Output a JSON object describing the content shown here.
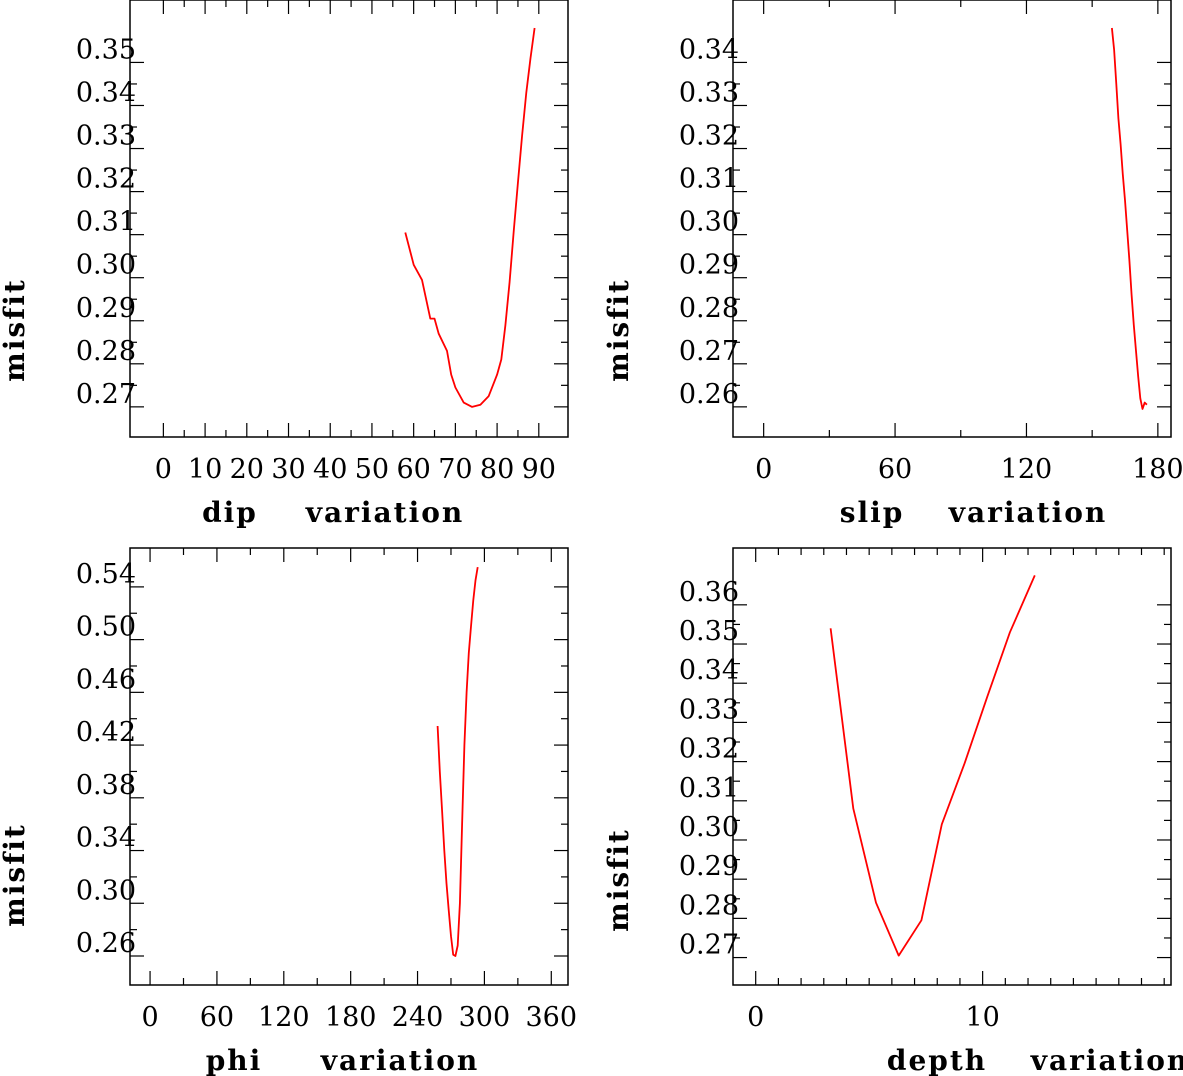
{
  "chart_data": [
    {
      "type": "line",
      "panel": "top-left",
      "title": "",
      "xlabel_parts": [
        "dip",
        "variation"
      ],
      "ylabel": "misfit",
      "xlim": [
        -8,
        97
      ],
      "ylim": [
        0.263,
        0.3645
      ],
      "xticks": [
        0,
        10,
        20,
        30,
        40,
        50,
        60,
        70,
        80,
        90
      ],
      "xtick_labels": [
        "0",
        "10",
        "20",
        "30",
        "40",
        "50",
        "60",
        "70",
        "80",
        "90"
      ],
      "yticks": [
        0.27,
        0.28,
        0.29,
        0.3,
        0.31,
        0.32,
        0.33,
        0.34,
        0.35
      ],
      "ytick_labels": [
        "0.27",
        "0.28",
        "0.29",
        "0.30",
        "0.31",
        "0.32",
        "0.33",
        "0.34",
        "0.35"
      ],
      "grid": false,
      "color": "#ff0000",
      "x": [
        58,
        60,
        62,
        64,
        65,
        66,
        68,
        69,
        70,
        72,
        74,
        76,
        78,
        80,
        81,
        82,
        83,
        84,
        85,
        86,
        87,
        88,
        89
      ],
      "y": [
        0.3105,
        0.303,
        0.2995,
        0.2905,
        0.2905,
        0.287,
        0.283,
        0.2775,
        0.2745,
        0.271,
        0.27,
        0.2705,
        0.2725,
        0.2775,
        0.281,
        0.289,
        0.299,
        0.311,
        0.322,
        0.333,
        0.343,
        0.351,
        0.358
      ]
    },
    {
      "type": "line",
      "panel": "top-right",
      "title": "",
      "xlabel_parts": [
        "slip",
        "variation"
      ],
      "ylabel": "misfit",
      "xlim": [
        -14,
        186
      ],
      "ylim": [
        0.253,
        0.3545
      ],
      "xticks": [
        0,
        60,
        120,
        180
      ],
      "xtick_labels": [
        "0",
        "60",
        "120",
        "180"
      ],
      "yticks": [
        0.26,
        0.27,
        0.28,
        0.29,
        0.3,
        0.31,
        0.32,
        0.33,
        0.34
      ],
      "ytick_labels": [
        "0.26",
        "0.27",
        "0.28",
        "0.29",
        "0.30",
        "0.31",
        "0.32",
        "0.33",
        "0.34"
      ],
      "grid": false,
      "color": "#ff0000",
      "x": [
        159,
        160,
        161,
        162,
        163,
        164,
        165,
        166,
        167,
        168,
        169,
        170,
        171,
        172,
        173,
        174,
        175
      ],
      "y": [
        0.348,
        0.343,
        0.335,
        0.327,
        0.321,
        0.314,
        0.308,
        0.301,
        0.294,
        0.286,
        0.279,
        0.273,
        0.267,
        0.262,
        0.2595,
        0.261,
        0.2605
      ]
    },
    {
      "type": "line",
      "panel": "bottom-left",
      "title": "",
      "xlabel_parts": [
        "phi",
        "variation"
      ],
      "ylabel": "misfit",
      "xlim": [
        -18,
        375
      ],
      "ylim": [
        0.238,
        0.5695
      ],
      "xticks": [
        0,
        60,
        120,
        180,
        240,
        300,
        360
      ],
      "xtick_labels": [
        "0",
        "60",
        "120",
        "180",
        "240",
        "300",
        "360"
      ],
      "yticks": [
        0.26,
        0.3,
        0.34,
        0.38,
        0.42,
        0.46,
        0.5,
        0.54
      ],
      "ytick_labels": [
        "0.26",
        "0.30",
        "0.34",
        "0.38",
        "0.42",
        "0.46",
        "0.50",
        "0.54"
      ],
      "grid": false,
      "color": "#ff0000",
      "x": [
        258,
        260,
        262,
        264,
        266,
        268,
        270,
        272,
        274,
        276,
        278,
        280,
        282,
        284,
        286,
        288,
        290,
        292,
        294
      ],
      "y": [
        0.4345,
        0.4,
        0.37,
        0.34,
        0.315,
        0.295,
        0.275,
        0.261,
        0.26,
        0.268,
        0.3,
        0.36,
        0.42,
        0.46,
        0.49,
        0.51,
        0.53,
        0.545,
        0.555
      ]
    },
    {
      "type": "line",
      "panel": "bottom-right",
      "title": "",
      "xlabel_parts": [
        "depth",
        "variation"
      ],
      "ylabel": "misfit",
      "xlim": [
        -1,
        18.3
      ],
      "ylim": [
        0.263,
        0.3745
      ],
      "xticks": [
        0,
        10
      ],
      "xtick_labels": [
        "0",
        "10"
      ],
      "minor_xticks": [
        1,
        2,
        3,
        4,
        5,
        6,
        7,
        8,
        9,
        11,
        12,
        13,
        14,
        15,
        16,
        17,
        18
      ],
      "yticks": [
        0.27,
        0.28,
        0.29,
        0.3,
        0.31,
        0.32,
        0.33,
        0.34,
        0.35,
        0.36
      ],
      "ytick_labels": [
        "0.27",
        "0.28",
        "0.29",
        "0.30",
        "0.31",
        "0.32",
        "0.33",
        "0.34",
        "0.35",
        "0.36"
      ],
      "grid": false,
      "color": "#ff0000",
      "x": [
        3.3,
        4.3,
        5.3,
        6.3,
        7.3,
        8.2,
        9.2,
        10.2,
        11.2,
        12.3
      ],
      "y": [
        0.354,
        0.308,
        0.284,
        0.2705,
        0.2795,
        0.304,
        0.3195,
        0.3365,
        0.353,
        0.3675
      ]
    }
  ]
}
